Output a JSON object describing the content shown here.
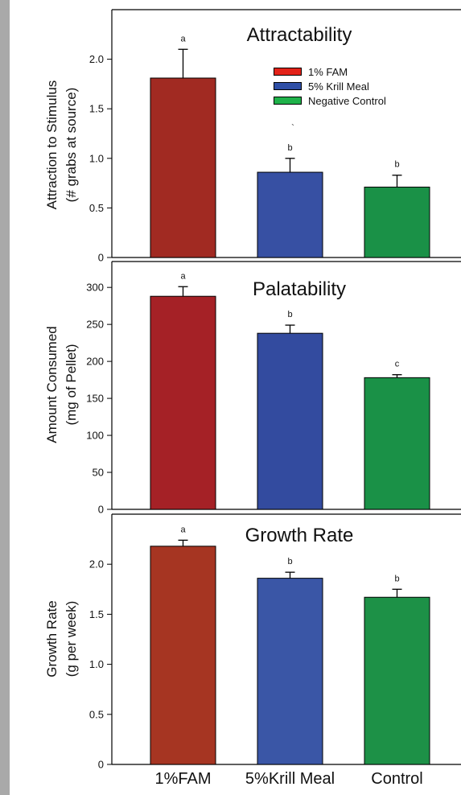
{
  "chart_data": [
    {
      "type": "bar",
      "title": "Attractability",
      "ylabel_lines": [
        "Attraction to Stimulus",
        "(# grabs at source)"
      ],
      "categories": [
        "1%FAM",
        "5%Krill Meal",
        "Control"
      ],
      "values": [
        1.81,
        0.86,
        0.71
      ],
      "errors": [
        0.29,
        0.14,
        0.12
      ],
      "significance_letters": [
        "a",
        "b",
        "b"
      ],
      "ylim": [
        0,
        2.5
      ],
      "yticks": [
        0,
        0.5,
        1.0,
        1.5,
        2.0
      ],
      "ytick_labels": [
        "0",
        "0.5",
        "1.0",
        "1.5",
        "2.0"
      ],
      "stray_mark": "`",
      "legend": {
        "placement": "top-right",
        "entries": [
          "1% FAM",
          "5% Krill Meal",
          "Negative Control"
        ],
        "colors": [
          "#e32219",
          "#2f4fa6",
          "#1fb24a"
        ]
      }
    },
    {
      "type": "bar",
      "title": "Palatability",
      "ylabel_lines": [
        "Amount Consumed",
        "(mg of Pellet)"
      ],
      "categories": [
        "1%FAM",
        "5%Krill Meal",
        "Control"
      ],
      "values": [
        288,
        238,
        178
      ],
      "errors": [
        13,
        11,
        4
      ],
      "significance_letters": [
        "a",
        "b",
        "c"
      ],
      "ylim": [
        0,
        335
      ],
      "yticks": [
        0,
        50,
        100,
        150,
        200,
        250,
        300
      ],
      "ytick_labels": [
        "0",
        "50",
        "100",
        "150",
        "200",
        "250",
        "300"
      ]
    },
    {
      "type": "bar",
      "title": "Growth Rate",
      "ylabel_lines": [
        "Growth Rate",
        "(g per week)"
      ],
      "categories": [
        "1%FAM",
        "5%Krill Meal",
        "Control"
      ],
      "values": [
        2.18,
        1.86,
        1.67
      ],
      "errors": [
        0.06,
        0.06,
        0.08
      ],
      "significance_letters": [
        "a",
        "b",
        "b"
      ],
      "ylim": [
        0,
        2.5
      ],
      "yticks": [
        0,
        0.5,
        1.0,
        1.5,
        2.0
      ],
      "ytick_labels": [
        "0",
        "0.5",
        "1.0",
        "1.5",
        "2.0"
      ],
      "xtick_labels": [
        "1%FAM",
        "5%Krill Meal",
        "Control"
      ]
    }
  ],
  "colors": {
    "panels": [
      [
        "#a12a22",
        "#3750a3",
        "#1a9147"
      ],
      [
        "#a52126",
        "#334b9f",
        "#1a9147"
      ],
      [
        "#a63522",
        "#3a56a6",
        "#1d9147"
      ]
    ]
  }
}
